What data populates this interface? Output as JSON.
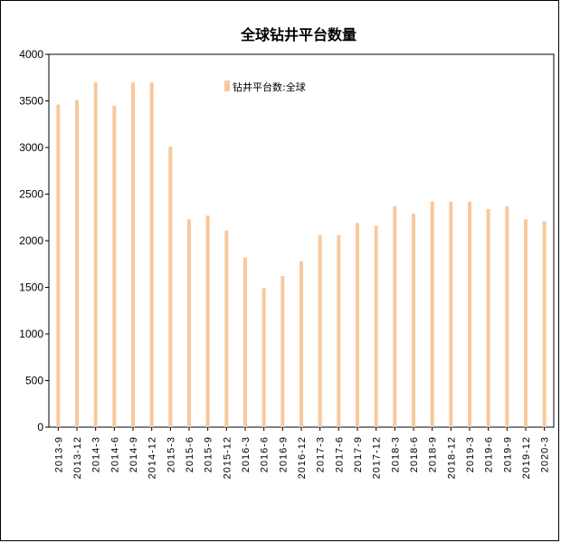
{
  "chart_data": {
    "type": "bar",
    "title": "全球钻井平台数量",
    "xlabel": "",
    "ylabel": "",
    "ylim": [
      0,
      4000
    ],
    "yticks": [
      0,
      500,
      1000,
      1500,
      2000,
      2500,
      3000,
      3500,
      4000
    ],
    "legend_position": "top-center",
    "bar_color": "#F9C89B",
    "categories": [
      "2013-9",
      "2013-12",
      "2014-3",
      "2014-6",
      "2014-9",
      "2014-12",
      "2015-3",
      "2015-6",
      "2015-9",
      "2015-12",
      "2016-3",
      "2016-6",
      "2016-9",
      "2016-12",
      "2017-3",
      "2017-6",
      "2017-9",
      "2017-12",
      "2018-3",
      "2018-6",
      "2018-9",
      "2018-12",
      "2019-3",
      "2019-6",
      "2019-9",
      "2019-12",
      "2020-3"
    ],
    "series": [
      {
        "name": "钻井平台数:全球",
        "values": [
          3460,
          3510,
          3700,
          3450,
          3700,
          3700,
          3010,
          2230,
          2270,
          2110,
          1820,
          1490,
          1620,
          1780,
          2060,
          2060,
          2190,
          2160,
          2370,
          2290,
          2420,
          2420,
          2420,
          2340,
          2370,
          2230,
          2210
        ]
      }
    ]
  }
}
